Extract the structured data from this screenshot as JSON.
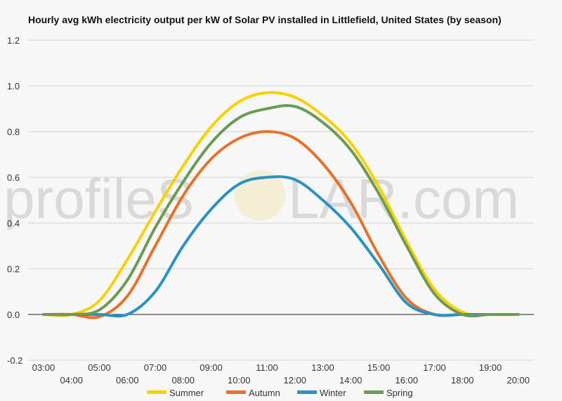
{
  "watermark": {
    "left": "profileS",
    "right": "LAR.com"
  },
  "chart_data": {
    "type": "line",
    "title": "Hourly avg kWh electricity output per kW of Solar PV installed in Littlefield, United States (by season)",
    "xlabel": "",
    "ylabel": "",
    "ylim": [
      -0.2,
      1.2
    ],
    "yticks": [
      "-0.2",
      "0.0",
      "0.2",
      "0.4",
      "0.6",
      "0.8",
      "1.0",
      "1.2"
    ],
    "xticks": [
      "03:00",
      "04:00",
      "05:00",
      "06:00",
      "07:00",
      "08:00",
      "09:00",
      "10:00",
      "11:00",
      "12:00",
      "13:00",
      "14:00",
      "15:00",
      "16:00",
      "17:00",
      "18:00",
      "19:00",
      "20:00"
    ],
    "grid": true,
    "legend": "bottom",
    "series": [
      {
        "name": "Summer",
        "color": "#f9d100",
        "values": [
          0.0,
          0.0,
          0.06,
          0.24,
          0.45,
          0.65,
          0.82,
          0.93,
          0.97,
          0.95,
          0.87,
          0.75,
          0.56,
          0.32,
          0.11,
          0.01,
          0.0,
          0.0
        ]
      },
      {
        "name": "Autumn",
        "color": "#e8722a",
        "values": [
          0.0,
          0.0,
          -0.01,
          0.08,
          0.3,
          0.52,
          0.68,
          0.77,
          0.8,
          0.77,
          0.66,
          0.49,
          0.26,
          0.07,
          0.0,
          0.0,
          0.0,
          0.0
        ]
      },
      {
        "name": "Winter",
        "color": "#2a93c4",
        "values": [
          0.0,
          0.0,
          0.0,
          0.0,
          0.1,
          0.3,
          0.46,
          0.57,
          0.6,
          0.59,
          0.5,
          0.38,
          0.22,
          0.05,
          0.0,
          0.0,
          0.0,
          0.0
        ]
      },
      {
        "name": "Spring",
        "color": "#6d9b56",
        "values": [
          0.0,
          0.0,
          0.02,
          0.15,
          0.38,
          0.58,
          0.75,
          0.86,
          0.9,
          0.91,
          0.84,
          0.72,
          0.53,
          0.3,
          0.09,
          0.0,
          0.0,
          0.0
        ]
      }
    ]
  }
}
